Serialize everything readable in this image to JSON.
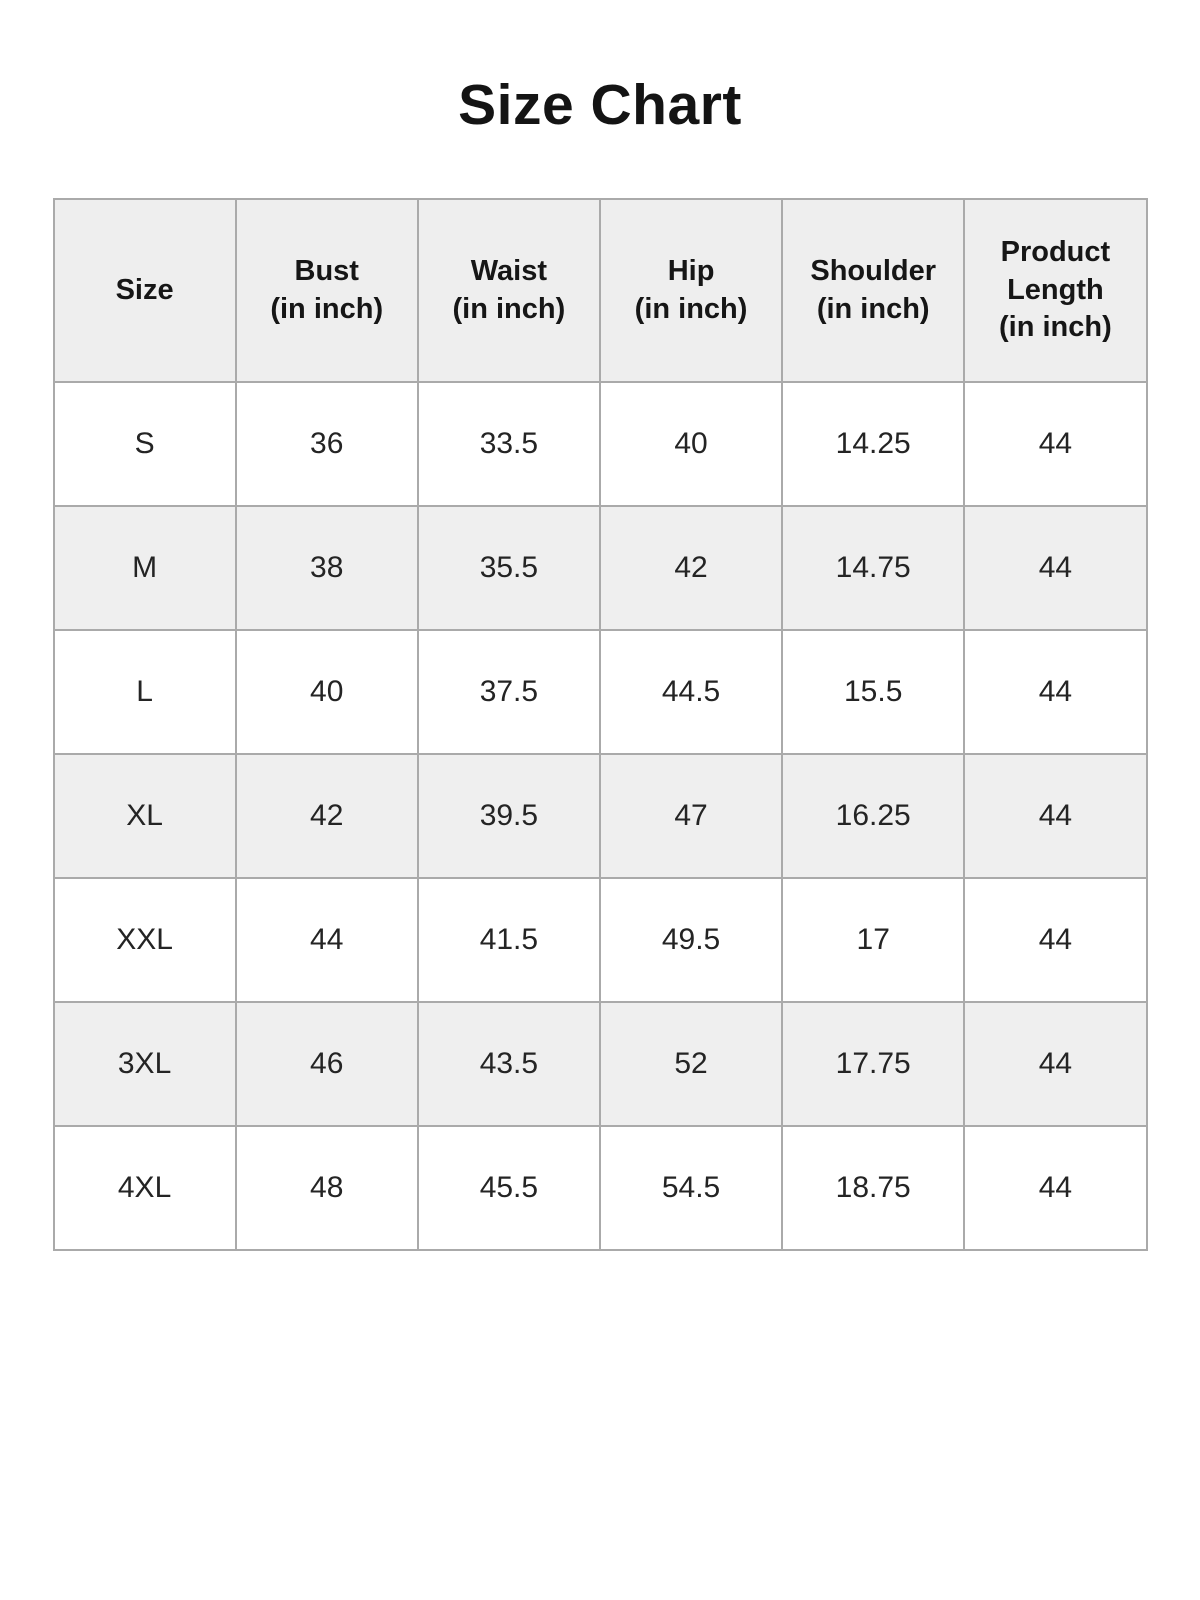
{
  "title": "Size Chart",
  "colors": {
    "header_bg": "#eeeeee",
    "stripe_bg": "#efefef",
    "border": "#aaaaaa",
    "text": "#1f1f1f"
  },
  "table": {
    "headers": [
      {
        "lines": [
          "Size",
          "",
          ""
        ]
      },
      {
        "lines": [
          "Bust",
          "(in inch)",
          ""
        ]
      },
      {
        "lines": [
          "Waist",
          "(in inch)",
          ""
        ]
      },
      {
        "lines": [
          "Hip",
          "(in inch)",
          ""
        ]
      },
      {
        "lines": [
          "Shoulder",
          "(in inch)",
          ""
        ]
      },
      {
        "lines": [
          "Product",
          "Length",
          "(in inch)"
        ]
      }
    ],
    "rows": [
      {
        "size": "S",
        "bust": "36",
        "waist": "33.5",
        "hip": "40",
        "shoulder": "14.25",
        "product_length": "44"
      },
      {
        "size": "M",
        "bust": "38",
        "waist": "35.5",
        "hip": "42",
        "shoulder": "14.75",
        "product_length": "44"
      },
      {
        "size": "L",
        "bust": "40",
        "waist": "37.5",
        "hip": "44.5",
        "shoulder": "15.5",
        "product_length": "44"
      },
      {
        "size": "XL",
        "bust": "42",
        "waist": "39.5",
        "hip": "47",
        "shoulder": "16.25",
        "product_length": "44"
      },
      {
        "size": "XXL",
        "bust": "44",
        "waist": "41.5",
        "hip": "49.5",
        "shoulder": "17",
        "product_length": "44"
      },
      {
        "size": "3XL",
        "bust": "46",
        "waist": "43.5",
        "hip": "52",
        "shoulder": "17.75",
        "product_length": "44"
      },
      {
        "size": "4XL",
        "bust": "48",
        "waist": "45.5",
        "hip": "54.5",
        "shoulder": "18.75",
        "product_length": "44"
      }
    ]
  }
}
